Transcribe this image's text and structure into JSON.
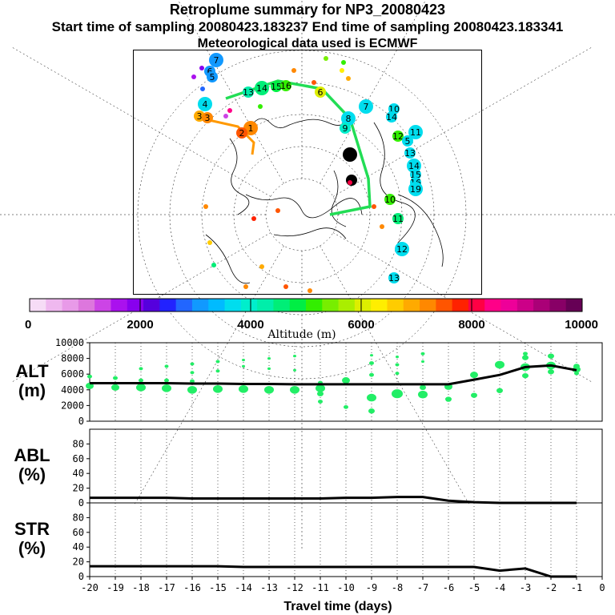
{
  "header": {
    "title": "Retroplume summary for NP3_20080423",
    "sampling": "Start time of sampling 20080423.183237     End time of sampling 20080423.183341",
    "met": "Meteorological data used is ECMWF"
  },
  "map": {
    "labels": [
      "7",
      "6",
      "5",
      "4",
      "3",
      "3",
      "1",
      "2",
      "13",
      "14",
      "15",
      "16",
      "8",
      "9",
      "10",
      "11",
      "12",
      "13",
      "14",
      "15",
      "16",
      "19",
      "10",
      "11",
      "12",
      "13",
      "14",
      "7",
      "6",
      "5",
      "9",
      "8"
    ],
    "colors": {
      "track": "#22dd55",
      "secondary_track": "#ff9900"
    }
  },
  "colorbar": {
    "colors": [
      "#f6dcf6",
      "#efb8ef",
      "#e89ae8",
      "#dd77dd",
      "#cc44e6",
      "#aa11ee",
      "#8800ee",
      "#5500dd",
      "#2222ff",
      "#2266ff",
      "#1199ff",
      "#00bbff",
      "#00ddee",
      "#00eecc",
      "#00eeaa",
      "#00ee77",
      "#00ee44",
      "#33ee00",
      "#77ee00",
      "#aaee00",
      "#ddee00",
      "#ffee00",
      "#ffcc00",
      "#ffaa00",
      "#ff8800",
      "#ff5500",
      "#ff2200",
      "#ff0044",
      "#ff0088",
      "#ee0099",
      "#cc0088",
      "#aa0077",
      "#880066",
      "#660055"
    ],
    "tick_labels": [
      "0",
      "2000",
      "4000",
      "6000",
      "8000",
      "10000"
    ],
    "label": "Altitude (m)"
  },
  "chart_data": [
    {
      "type": "line",
      "name": "ALT",
      "ylabel": "ALT (m)",
      "ylabel_lines": [
        "ALT",
        "(m)"
      ],
      "ylim": [
        0,
        10000
      ],
      "yticks": [
        "0",
        "2000",
        "4000",
        "6000",
        "8000",
        "10000"
      ],
      "x": [
        -20,
        -19,
        -18,
        -17,
        -16,
        -15,
        -14,
        -13,
        -12,
        -11,
        -10,
        -9,
        -8,
        -7,
        -6,
        -5,
        -4,
        -3,
        -2,
        -1
      ],
      "values": [
        4850,
        4850,
        4850,
        4850,
        4800,
        4800,
        4750,
        4750,
        4700,
        4700,
        4700,
        4700,
        4700,
        4700,
        4700,
        5300,
        5900,
        6900,
        7100,
        6500
      ],
      "scatter": [
        {
          "x": -20,
          "y": 4500,
          "s": 5
        },
        {
          "x": -20,
          "y": 5700,
          "s": 3
        },
        {
          "x": -19,
          "y": 4300,
          "s": 5
        },
        {
          "x": -19,
          "y": 5500,
          "s": 3
        },
        {
          "x": -18,
          "y": 4300,
          "s": 6
        },
        {
          "x": -18,
          "y": 6700,
          "s": 2.5
        },
        {
          "x": -18,
          "y": 5200,
          "s": 3
        },
        {
          "x": -17,
          "y": 4200,
          "s": 6
        },
        {
          "x": -17,
          "y": 7000,
          "s": 2.5
        },
        {
          "x": -17,
          "y": 5200,
          "s": 3
        },
        {
          "x": -16,
          "y": 4000,
          "s": 6
        },
        {
          "x": -16,
          "y": 7300,
          "s": 2.5
        },
        {
          "x": -16,
          "y": 6200,
          "s": 2.5
        },
        {
          "x": -16,
          "y": 5100,
          "s": 3
        },
        {
          "x": -15,
          "y": 4100,
          "s": 6
        },
        {
          "x": -15,
          "y": 7600,
          "s": 2.5
        },
        {
          "x": -15,
          "y": 6400,
          "s": 2.5
        },
        {
          "x": -14,
          "y": 4100,
          "s": 6
        },
        {
          "x": -14,
          "y": 7800,
          "s": 2
        },
        {
          "x": -14,
          "y": 7000,
          "s": 2
        },
        {
          "x": -13,
          "y": 4000,
          "s": 6
        },
        {
          "x": -13,
          "y": 8000,
          "s": 2
        },
        {
          "x": -13,
          "y": 6700,
          "s": 2
        },
        {
          "x": -12,
          "y": 4000,
          "s": 6
        },
        {
          "x": -12,
          "y": 8300,
          "s": 2
        },
        {
          "x": -12,
          "y": 6500,
          "s": 2
        },
        {
          "x": -11,
          "y": 4200,
          "s": 6
        },
        {
          "x": -11,
          "y": 3500,
          "s": 4
        },
        {
          "x": -11,
          "y": 2500,
          "s": 3
        },
        {
          "x": -11,
          "y": 4900,
          "s": 3
        },
        {
          "x": -10,
          "y": 5200,
          "s": 5
        },
        {
          "x": -10,
          "y": 1800,
          "s": 3
        },
        {
          "x": -9,
          "y": 3000,
          "s": 6
        },
        {
          "x": -9,
          "y": 7400,
          "s": 3
        },
        {
          "x": -9,
          "y": 5900,
          "s": 3
        },
        {
          "x": -9,
          "y": 1300,
          "s": 4
        },
        {
          "x": -9,
          "y": 8400,
          "s": 2
        },
        {
          "x": -8,
          "y": 3500,
          "s": 7
        },
        {
          "x": -8,
          "y": 7200,
          "s": 2.5
        },
        {
          "x": -8,
          "y": 6100,
          "s": 2.5
        },
        {
          "x": -8,
          "y": 8200,
          "s": 2
        },
        {
          "x": -7,
          "y": 3400,
          "s": 6
        },
        {
          "x": -7,
          "y": 4300,
          "s": 4
        },
        {
          "x": -7,
          "y": 8600,
          "s": 2.5
        },
        {
          "x": -7,
          "y": 7600,
          "s": 2
        },
        {
          "x": -6,
          "y": 4400,
          "s": 5
        },
        {
          "x": -6,
          "y": 2800,
          "s": 4
        },
        {
          "x": -5,
          "y": 5900,
          "s": 5
        },
        {
          "x": -5,
          "y": 3300,
          "s": 4
        },
        {
          "x": -4,
          "y": 7200,
          "s": 6
        },
        {
          "x": -4,
          "y": 3900,
          "s": 4
        },
        {
          "x": -3,
          "y": 6900,
          "s": 6
        },
        {
          "x": -3,
          "y": 8100,
          "s": 4
        },
        {
          "x": -3,
          "y": 5800,
          "s": 4
        },
        {
          "x": -3,
          "y": 8600,
          "s": 3
        },
        {
          "x": -2,
          "y": 7100,
          "s": 6
        },
        {
          "x": -2,
          "y": 8300,
          "s": 4
        },
        {
          "x": -2,
          "y": 6300,
          "s": 4
        },
        {
          "x": -1,
          "y": 6600,
          "s": 5
        },
        {
          "x": -1,
          "y": 7000,
          "s": 4
        },
        {
          "x": -1,
          "y": 6100,
          "s": 3
        }
      ]
    },
    {
      "type": "line",
      "name": "ABL",
      "ylabel": "ABL (%)",
      "ylabel_lines": [
        "ABL",
        "(%)"
      ],
      "ylim": [
        0,
        100
      ],
      "yticks": [
        "0",
        "20",
        "40",
        "60",
        "80"
      ],
      "x": [
        -20,
        -19,
        -18,
        -17,
        -16,
        -15,
        -14,
        -13,
        -12,
        -11,
        -10,
        -9,
        -8,
        -7,
        -6,
        -5,
        -4,
        -3,
        -2,
        -1
      ],
      "values": [
        7,
        7,
        7,
        7,
        6,
        6,
        6,
        6,
        6,
        6,
        7,
        7,
        8,
        8,
        3,
        1,
        0,
        0,
        0,
        0
      ]
    },
    {
      "type": "line",
      "name": "STR",
      "ylabel": "STR (%)",
      "ylabel_lines": [
        "STR",
        "(%)"
      ],
      "ylim": [
        0,
        100
      ],
      "yticks": [
        "0",
        "20",
        "40",
        "60",
        "80"
      ],
      "x": [
        -20,
        -19,
        -18,
        -17,
        -16,
        -15,
        -14,
        -13,
        -12,
        -11,
        -10,
        -9,
        -8,
        -7,
        -6,
        -5,
        -4,
        -3,
        -2,
        -1
      ],
      "values": [
        14,
        14,
        14,
        14,
        14,
        14,
        13,
        13,
        13,
        13,
        13,
        13,
        13,
        13,
        13,
        13,
        8,
        11,
        0,
        0
      ],
      "xlabel": "Travel time (days)",
      "xticks": [
        "-20",
        "-19",
        "-18",
        "-17",
        "-16",
        "-15",
        "-14",
        "-13",
        "-12",
        "-11",
        "-10",
        "-9",
        "-8",
        "-7",
        "-6",
        "-5",
        "-4",
        "-3",
        "-2",
        "-1",
        "0"
      ]
    }
  ]
}
